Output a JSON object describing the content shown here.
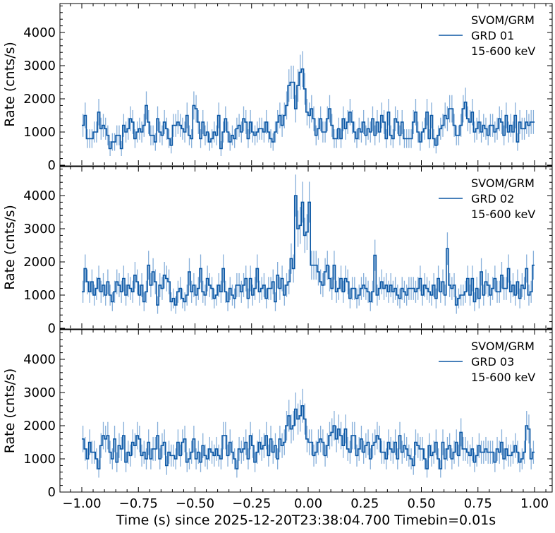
{
  "chart_data": {
    "type": "line",
    "drawstyle": "steps",
    "xlabel": "Time (s) since 2025-12-20T23:38:04.700 Timebin=0.01s",
    "ylabel": "Rate (cnts/s)",
    "xlim": [
      -1.1,
      1.08
    ],
    "ylim": [
      0,
      4870
    ],
    "x_start": -1.0,
    "bin_width": 0.01,
    "xticks": [
      -1.0,
      -0.75,
      -0.5,
      -0.25,
      0.0,
      0.25,
      0.5,
      0.75,
      1.0
    ],
    "xtick_labels": [
      "−1.00",
      "−0.75",
      "−0.50",
      "−0.25",
      "0.00",
      "0.25",
      "0.50",
      "0.75",
      "1.00"
    ],
    "yticks": [
      0,
      1000,
      2000,
      3000,
      4000
    ],
    "ytick_labels": [
      "0",
      "1000",
      "2000",
      "3000",
      "4000"
    ],
    "line_color": "#0b57a4",
    "errorbar_color": "#7aa7d6",
    "panels": [
      {
        "legend": [
          "SVOM/GRM",
          "GRD 01",
          "15-600 keV"
        ],
        "legend_position": "top-right",
        "values": [
          1200,
          1500,
          800,
          800,
          800,
          1000,
          1000,
          1600,
          1100,
          1200,
          1100,
          900,
          500,
          700,
          700,
          900,
          900,
          500,
          1200,
          1000,
          1100,
          1400,
          1300,
          800,
          1000,
          1100,
          1000,
          1200,
          1800,
          1300,
          900,
          900,
          700,
          1400,
          1000,
          900,
          1300,
          1100,
          800,
          600,
          1200,
          1200,
          1300,
          1200,
          1100,
          1000,
          1500,
          900,
          800,
          1800,
          1700,
          1300,
          800,
          1300,
          900,
          1000,
          700,
          800,
          1000,
          900,
          1500,
          500,
          1000,
          1400,
          1000,
          700,
          900,
          800,
          1100,
          1200,
          1000,
          1400,
          1300,
          800,
          1300,
          1000,
          900,
          1000,
          1100,
          1100,
          1000,
          1300,
          1000,
          800,
          700,
          1000,
          1300,
          1500,
          1200,
          1500,
          1800,
          2400,
          2500,
          2500,
          1700,
          2400,
          2800,
          2900,
          2300,
          1600,
          1500,
          1700,
          1400,
          900,
          1100,
          1400,
          1000,
          1000,
          1400,
          1700,
          1200,
          800,
          800,
          1100,
          800,
          1400,
          1100,
          1300,
          1600,
          1300,
          1000,
          800,
          1100,
          1000,
          1300,
          900,
          1100,
          1000,
          1400,
          900,
          1300,
          1000,
          1500,
          1300,
          800,
          1600,
          900,
          800,
          1400,
          1300,
          900,
          1300,
          800,
          800,
          800,
          800,
          1300,
          1600,
          1000,
          700,
          1000,
          1100,
          1600,
          800,
          1500,
          800,
          600,
          900,
          1100,
          1200,
          1500,
          1400,
          1700,
          1700,
          1200,
          900,
          900,
          1200,
          1700,
          1900,
          1400,
          1300,
          1600,
          1000,
          1100,
          1300,
          1000,
          1200,
          1100,
          900,
          1200,
          1200,
          1000,
          1100,
          1400,
          1300,
          900,
          1500,
          1000,
          1200,
          1000,
          1500,
          700,
          1300,
          1100,
          1100,
          1300,
          1200,
          1300,
          1300
        ]
      },
      {
        "legend": [
          "SVOM/GRM",
          "GRD 02",
          "15-600 keV"
        ],
        "legend_position": "top-right",
        "values": [
          1100,
          1800,
          1400,
          1100,
          1400,
          1000,
          1200,
          1500,
          1100,
          1300,
          1000,
          1400,
          1000,
          800,
          1100,
          1400,
          1300,
          1100,
          1500,
          1000,
          1300,
          1200,
          1100,
          1600,
          1400,
          1000,
          1300,
          800,
          1100,
          1900,
          1300,
          1700,
          1400,
          700,
          1300,
          1200,
          1600,
          1500,
          1400,
          800,
          900,
          700,
          1100,
          1200,
          900,
          800,
          1000,
          1700,
          1100,
          1300,
          1000,
          1200,
          1800,
          1100,
          1000,
          1500,
          1300,
          1200,
          900,
          1000,
          1300,
          1100,
          1800,
          1100,
          800,
          1200,
          1000,
          900,
          1300,
          1300,
          1100,
          1300,
          1500,
          900,
          1500,
          1000,
          1200,
          1800,
          1100,
          1200,
          1300,
          900,
          1200,
          1200,
          1400,
          800,
          1600,
          1200,
          1500,
          1000,
          1300,
          1400,
          2100,
          1800,
          4000,
          3000,
          3100,
          3800,
          2800,
          2900,
          3800,
          1900,
          1900,
          1900,
          1700,
          1400,
          1300,
          1700,
          1900,
          1500,
          1200,
          1900,
          1100,
          1200,
          1500,
          1100,
          1500,
          1400,
          900,
          1200,
          1200,
          900,
          1000,
          1200,
          1300,
          1200,
          1100,
          800,
          1100,
          2200,
          1000,
          1200,
          1400,
          1200,
          1300,
          1100,
          1300,
          1100,
          1200,
          1000,
          900,
          1200,
          1100,
          1000,
          1200,
          1200,
          1200,
          1100,
          1200,
          1500,
          1000,
          1300,
          1200,
          1100,
          1000,
          1300,
          900,
          1500,
          1100,
          1400,
          1000,
          2400,
          1300,
          1200,
          1300,
          700,
          900,
          1000,
          1000,
          1100,
          1500,
          1000,
          1500,
          800,
          1200,
          900,
          1700,
          1000,
          1400,
          1300,
          1000,
          1200,
          1500,
          1100,
          1100,
          1600,
          1200,
          1200,
          1800,
          1100,
          1300,
          1000,
          1400,
          900,
          1300,
          1200,
          1800,
          1000,
          1100,
          1900
        ]
      },
      {
        "legend": [
          "SVOM/GRM",
          "GRD 03",
          "15-600 keV"
        ],
        "legend_position": "top-right",
        "values": [
          1600,
          1300,
          1000,
          1500,
          1200,
          1200,
          1000,
          700,
          1400,
          1700,
          1600,
          1700,
          1200,
          1000,
          1600,
          900,
          1400,
          1300,
          1700,
          900,
          1200,
          1100,
          1500,
          1400,
          1700,
          1600,
          1100,
          1200,
          1000,
          1500,
          1000,
          1300,
          1300,
          1700,
          1000,
          1400,
          1500,
          800,
          1200,
          1100,
          1100,
          1000,
          1500,
          1100,
          1500,
          1600,
          900,
          1000,
          1200,
          1600,
          1000,
          1200,
          900,
          1400,
          1100,
          1000,
          1300,
          1200,
          1100,
          1300,
          1100,
          1000,
          1700,
          1700,
          1100,
          1500,
          1200,
          1000,
          700,
          1300,
          1200,
          1300,
          1500,
          1000,
          1700,
          1400,
          900,
          1200,
          1500,
          1300,
          1400,
          1700,
          1100,
          1600,
          1200,
          1400,
          1000,
          1600,
          1400,
          1500,
          2000,
          2300,
          1900,
          2000,
          2500,
          2200,
          2300,
          2600,
          2200,
          1600,
          1500,
          1500,
          1100,
          1200,
          1500,
          1600,
          1500,
          1100,
          1400,
          1700,
          1800,
          2000,
          1600,
          1900,
          1700,
          1400,
          1900,
          1300,
          1200,
          1700,
          1700,
          1100,
          1300,
          1600,
          1200,
          1400,
          1500,
          1000,
          1400,
          1500,
          1700,
          1600,
          1200,
          1200,
          1000,
          1500,
          1300,
          1200,
          1500,
          1000,
          1700,
          1200,
          1400,
          1300,
          1100,
          1000,
          800,
          1500,
          1400,
          1300,
          1300,
          1000,
          700,
          1400,
          1100,
          1200,
          1500,
          1000,
          700,
          1500,
          1000,
          1300,
          1400,
          1000,
          1200,
          1500,
          1100,
          1800,
          1300,
          1300,
          1200,
          1100,
          1300,
          900,
          1100,
          1400,
          1200,
          1200,
          1300,
          1200,
          1200,
          1200,
          900,
          1300,
          1200,
          1500,
          1000,
          1300,
          1100,
          1100,
          1200,
          1400,
          1200,
          900,
          1000,
          1200,
          2000,
          1900,
          1000,
          1200
        ]
      }
    ]
  }
}
